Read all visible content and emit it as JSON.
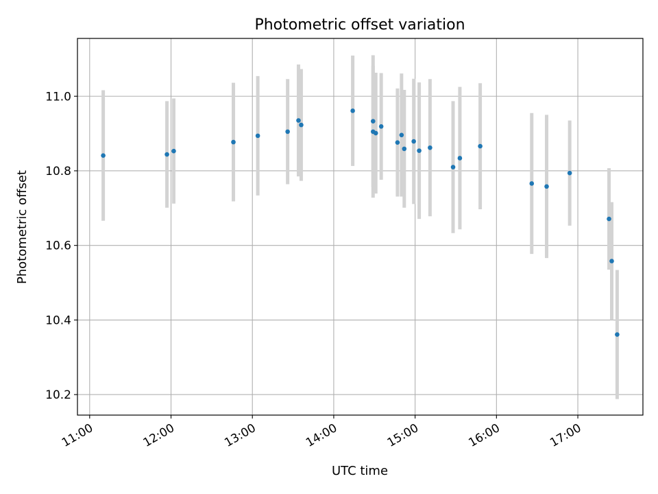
{
  "chart_data": {
    "type": "scatter",
    "title": "Photometric offset variation",
    "xlabel": "UTC time",
    "ylabel": "Photometric offset",
    "grid": true,
    "xlim": [
      "10:51",
      "17:48"
    ],
    "ylim": [
      10.145,
      11.155
    ],
    "x_ticks": [
      "11:00",
      "12:00",
      "13:00",
      "14:00",
      "15:00",
      "16:00",
      "17:00"
    ],
    "y_ticks": [
      "10.2",
      "10.4",
      "10.6",
      "10.8",
      "11.0"
    ],
    "colors": {
      "point": "#1f77b4",
      "errorbar": "#d3d3d3",
      "grid": "#b0b0b0"
    },
    "points": [
      {
        "x": "11:10",
        "y": 10.841,
        "err": 0.175
      },
      {
        "x": "11:57",
        "y": 10.844,
        "err": 0.143
      },
      {
        "x": "12:02",
        "y": 10.853,
        "err": 0.141
      },
      {
        "x": "12:46",
        "y": 10.877,
        "err": 0.159
      },
      {
        "x": "13:04",
        "y": 10.894,
        "err": 0.16
      },
      {
        "x": "13:26",
        "y": 10.905,
        "err": 0.141
      },
      {
        "x": "13:34",
        "y": 10.935,
        "err": 0.15
      },
      {
        "x": "13:36",
        "y": 10.923,
        "err": 0.15
      },
      {
        "x": "14:14",
        "y": 10.961,
        "err": 0.148
      },
      {
        "x": "14:29",
        "y": 10.905,
        "err": 0.177
      },
      {
        "x": "14:29",
        "y": 10.933,
        "err": 0.177
      },
      {
        "x": "14:31",
        "y": 10.901,
        "err": 0.162
      },
      {
        "x": "14:35",
        "y": 10.919,
        "err": 0.143
      },
      {
        "x": "14:47",
        "y": 10.876,
        "err": 0.145
      },
      {
        "x": "14:50",
        "y": 10.896,
        "err": 0.165
      },
      {
        "x": "14:52",
        "y": 10.859,
        "err": 0.158
      },
      {
        "x": "14:59",
        "y": 10.879,
        "err": 0.168
      },
      {
        "x": "15:03",
        "y": 10.854,
        "err": 0.183
      },
      {
        "x": "15:11",
        "y": 10.862,
        "err": 0.184
      },
      {
        "x": "15:28",
        "y": 10.81,
        "err": 0.177
      },
      {
        "x": "15:33",
        "y": 10.834,
        "err": 0.191
      },
      {
        "x": "15:48",
        "y": 10.866,
        "err": 0.169
      },
      {
        "x": "16:26",
        "y": 10.766,
        "err": 0.189
      },
      {
        "x": "16:37",
        "y": 10.758,
        "err": 0.192
      },
      {
        "x": "16:54",
        "y": 10.794,
        "err": 0.141
      },
      {
        "x": "17:23",
        "y": 10.671,
        "err": 0.136
      },
      {
        "x": "17:25",
        "y": 10.558,
        "err": 0.158
      },
      {
        "x": "17:29",
        "y": 10.361,
        "err": 0.173
      }
    ]
  }
}
